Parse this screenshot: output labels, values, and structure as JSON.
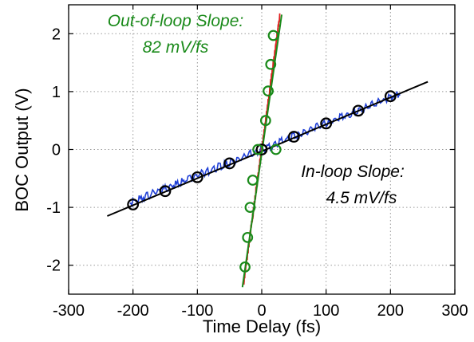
{
  "chart_data": {
    "type": "scatter",
    "xlabel": "Time Delay (fs)",
    "ylabel": "BOC Output (V)",
    "xlim": [
      -300,
      300
    ],
    "ylim": [
      -2.5,
      2.5
    ],
    "xticks": [
      -300,
      -200,
      -100,
      0,
      100,
      200,
      300
    ],
    "yticks": [
      -2,
      -1,
      0,
      1,
      2
    ],
    "xtick_labels": [
      "-300",
      "-200",
      "-100",
      "0",
      "100",
      "200",
      "300"
    ],
    "ytick_labels": [
      "-2",
      "-1",
      "0",
      "1",
      "2"
    ],
    "grid": true,
    "colors": {
      "in_loop_data": "#1f3fd6",
      "in_loop_fit": "#000000",
      "in_loop_marker": "#000000",
      "out_loop_data": "#e02020",
      "out_loop_fit": "#1a8a1a",
      "out_loop_marker": "#1a8a1a",
      "annotation_green": "#1a8a1a",
      "annotation_black": "#000000"
    },
    "series": [
      {
        "kind": "trace",
        "x_range": [
          -205,
          215
        ],
        "slope_v_per_fs": 0.0045
      },
      {
        "kind": "fit-line",
        "x": [
          -240,
          258
        ],
        "y": [
          -1.15,
          1.17
        ]
      },
      {
        "kind": "markers",
        "x": [
          -200,
          -150,
          -100,
          -50,
          0,
          50,
          100,
          150,
          200
        ],
        "y": [
          -0.95,
          -0.72,
          -0.48,
          -0.24,
          0.0,
          0.22,
          0.45,
          0.67,
          0.92
        ]
      },
      {
        "kind": "trace",
        "x_range": [
          -28,
          28
        ],
        "slope_v_per_fs": 0.082
      },
      {
        "kind": "fit-line",
        "x": [
          -30,
          31
        ],
        "y": [
          -2.38,
          2.33
        ]
      },
      {
        "kind": "markers",
        "x": [
          -26,
          -22,
          -18,
          -14,
          -6,
          6,
          10,
          14,
          18,
          22
        ],
        "y": [
          -2.03,
          -1.52,
          -1.0,
          -0.53,
          0.0,
          0.5,
          1.01,
          1.47,
          1.97,
          0.0
        ]
      }
    ],
    "annotations": [
      {
        "id": "out_title",
        "text": "Out-of-loop Slope:",
        "color": "#1a8a1a"
      },
      {
        "id": "out_value",
        "text": "82 mV/fs",
        "color": "#1a8a1a"
      },
      {
        "id": "in_title",
        "text": "In-loop Slope:",
        "color": "#000000"
      },
      {
        "id": "in_value",
        "text": "4.5 mV/fs",
        "color": "#000000"
      }
    ]
  }
}
